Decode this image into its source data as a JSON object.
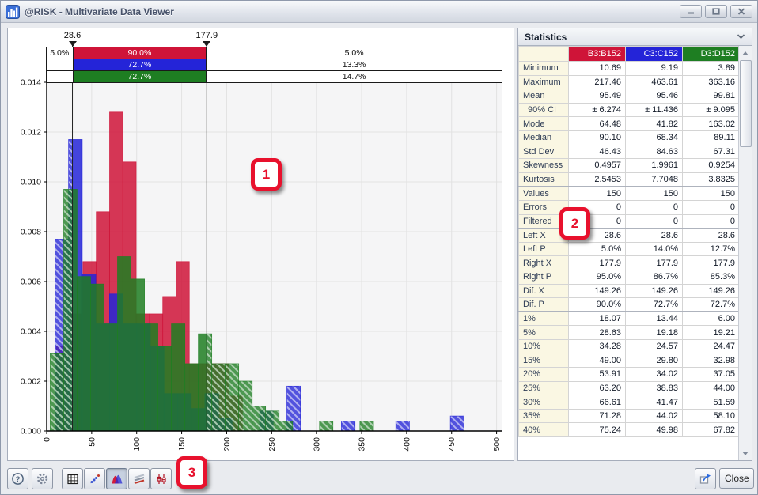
{
  "window": {
    "title": "@RISK - Multivariate Data Viewer",
    "controls": [
      "minimize",
      "maximize",
      "close"
    ]
  },
  "colors": {
    "series_red": "#cf1438",
    "series_blue": "#2424d8",
    "series_green": "#1e7e22",
    "callout_red": "#e8112d"
  },
  "chart_data": {
    "type": "histogram",
    "title": "",
    "xlabel": "",
    "ylabel": "",
    "xlim": [
      0,
      500
    ],
    "ylim": [
      0,
      0.014
    ],
    "x_ticks": [
      0,
      50,
      100,
      150,
      200,
      250,
      300,
      350,
      400,
      450,
      500
    ],
    "x_tick_labels": [
      "0",
      "50",
      "100",
      "150",
      "200",
      "250",
      "300",
      "350",
      "400",
      "450",
      "500"
    ],
    "y_ticks": [
      0,
      0.002,
      0.004,
      0.006,
      0.008,
      0.01,
      0.012,
      0.014
    ],
    "y_tick_labels": [
      "0.000",
      "0.002",
      "0.004",
      "0.006",
      "0.008",
      "0.010",
      "0.012",
      "0.014"
    ],
    "grid": true,
    "legend_position": "none",
    "delimiters": {
      "left_x": 28.6,
      "right_x": 177.9,
      "left_label": "28.6",
      "right_label": "177.9"
    },
    "band_rows": [
      {
        "left": "5.0%",
        "mid": "90.0%",
        "right": "5.0%",
        "color": "#cf1438"
      },
      {
        "left": "",
        "mid": "72.7%",
        "right": "13.3%",
        "color": "#2424d8"
      },
      {
        "left": "",
        "mid": "72.7%",
        "right": "14.7%",
        "color": "#1e7e22"
      }
    ],
    "series": [
      {
        "name": "B3:B152",
        "color": "#cf1438",
        "bins": [
          [
            10.7,
            25.5,
            0.0034
          ],
          [
            25.5,
            40.3,
            0.0047
          ],
          [
            40.3,
            55.1,
            0.0068
          ],
          [
            55.1,
            69.9,
            0.0088
          ],
          [
            69.9,
            84.6,
            0.0128
          ],
          [
            84.6,
            99.4,
            0.0108
          ],
          [
            99.4,
            114.2,
            0.0047
          ],
          [
            114.2,
            129.0,
            0.0047
          ],
          [
            129.0,
            143.8,
            0.0054
          ],
          [
            143.8,
            158.5,
            0.0068
          ],
          [
            158.5,
            173.3,
            0.0027
          ],
          [
            173.3,
            188.1,
            0.0027
          ],
          [
            188.1,
            202.9,
            0.0027
          ],
          [
            202.9,
            217.5,
            0.0014
          ]
        ]
      },
      {
        "name": "C3:C152",
        "color": "#2424d8",
        "bins": [
          [
            9.2,
            24.3,
            0.0077
          ],
          [
            24.3,
            39.5,
            0.0117
          ],
          [
            39.5,
            54.6,
            0.0063
          ],
          [
            54.6,
            69.8,
            0.0043
          ],
          [
            69.8,
            84.9,
            0.0055
          ],
          [
            84.9,
            100.1,
            0.0043
          ],
          [
            100.1,
            115.2,
            0.0043
          ],
          [
            115.2,
            130.4,
            0.0034
          ],
          [
            130.4,
            145.5,
            0.0015
          ],
          [
            145.5,
            160.7,
            0.0015
          ],
          [
            160.7,
            175.8,
            0.0009
          ],
          [
            175.8,
            191.0,
            0.0015
          ],
          [
            191.0,
            206.1,
            0.0005
          ],
          [
            236.6,
            251.7,
            0.0008
          ],
          [
            266.9,
            282.0,
            0.0018
          ],
          [
            327.5,
            342.7,
            0.0004
          ],
          [
            388.0,
            403.1,
            0.0004
          ],
          [
            448.6,
            463.8,
            0.0006
          ]
        ]
      },
      {
        "name": "D3:D152",
        "color": "#1e7e22",
        "bins": [
          [
            3.9,
            18.9,
            0.0031
          ],
          [
            18.9,
            33.8,
            0.0097
          ],
          [
            33.8,
            48.8,
            0.0062
          ],
          [
            48.8,
            63.8,
            0.0059
          ],
          [
            63.8,
            78.7,
            0.0043
          ],
          [
            78.7,
            93.7,
            0.007
          ],
          [
            93.7,
            108.7,
            0.0061
          ],
          [
            108.7,
            123.6,
            0.0043
          ],
          [
            123.6,
            138.6,
            0.0034
          ],
          [
            138.6,
            153.6,
            0.0043
          ],
          [
            153.6,
            168.5,
            0.0027
          ],
          [
            168.5,
            183.5,
            0.0039
          ],
          [
            183.5,
            198.4,
            0.0027
          ],
          [
            198.4,
            213.4,
            0.0027
          ],
          [
            213.4,
            228.4,
            0.002
          ],
          [
            228.4,
            243.3,
            0.001
          ],
          [
            243.3,
            258.3,
            0.0008
          ],
          [
            258.3,
            273.3,
            0.0004
          ],
          [
            303.2,
            318.1,
            0.0004
          ],
          [
            348.1,
            363.2,
            0.0004
          ]
        ]
      }
    ]
  },
  "statistics": {
    "title": "Statistics",
    "columns": [
      {
        "label": "B3:B152",
        "color": "#cf1438"
      },
      {
        "label": "C3:C152",
        "color": "#2424d8"
      },
      {
        "label": "D3:D152",
        "color": "#1e7e22"
      }
    ],
    "rows": [
      {
        "label": "Minimum",
        "values": [
          "10.69",
          "9.19",
          "3.89"
        ]
      },
      {
        "label": "Maximum",
        "values": [
          "217.46",
          "463.61",
          "363.16"
        ]
      },
      {
        "label": "Mean",
        "values": [
          "95.49",
          "95.46",
          "99.81"
        ]
      },
      {
        "label": "90% CI",
        "values": [
          "± 6.274",
          "± 11.436",
          "± 9.095"
        ],
        "indent": true
      },
      {
        "label": "Mode",
        "values": [
          "64.48",
          "41.82",
          "163.02"
        ]
      },
      {
        "label": "Median",
        "values": [
          "90.10",
          "68.34",
          "89.11"
        ]
      },
      {
        "label": "Std Dev",
        "values": [
          "46.43",
          "84.63",
          "67.31"
        ]
      },
      {
        "label": "Skewness",
        "values": [
          "0.4957",
          "1.9961",
          "0.9254"
        ]
      },
      {
        "label": "Kurtosis",
        "values": [
          "2.5453",
          "7.7048",
          "3.8325"
        ],
        "sep": true
      },
      {
        "label": "Values",
        "values": [
          "150",
          "150",
          "150"
        ]
      },
      {
        "label": "Errors",
        "values": [
          "0",
          "0",
          "0"
        ]
      },
      {
        "label": "Filtered",
        "values": [
          "0",
          "0",
          "0"
        ],
        "sep": true
      },
      {
        "label": "Left X",
        "values": [
          "28.6",
          "28.6",
          "28.6"
        ]
      },
      {
        "label": "Left P",
        "values": [
          "5.0%",
          "14.0%",
          "12.7%"
        ]
      },
      {
        "label": "Right X",
        "values": [
          "177.9",
          "177.9",
          "177.9"
        ]
      },
      {
        "label": "Right P",
        "values": [
          "95.0%",
          "86.7%",
          "85.3%"
        ]
      },
      {
        "label": "Dif. X",
        "values": [
          "149.26",
          "149.26",
          "149.26"
        ]
      },
      {
        "label": "Dif. P",
        "values": [
          "90.0%",
          "72.7%",
          "72.7%"
        ],
        "sep": true
      },
      {
        "label": "1%",
        "values": [
          "18.07",
          "13.44",
          "6.00"
        ]
      },
      {
        "label": "5%",
        "values": [
          "28.63",
          "19.18",
          "19.21"
        ]
      },
      {
        "label": "10%",
        "values": [
          "34.28",
          "24.57",
          "24.47"
        ]
      },
      {
        "label": "15%",
        "values": [
          "49.00",
          "29.80",
          "32.98"
        ]
      },
      {
        "label": "20%",
        "values": [
          "53.91",
          "34.02",
          "37.05"
        ]
      },
      {
        "label": "25%",
        "values": [
          "63.20",
          "38.83",
          "44.00"
        ]
      },
      {
        "label": "30%",
        "values": [
          "66.61",
          "41.47",
          "51.59"
        ]
      },
      {
        "label": "35%",
        "values": [
          "71.28",
          "44.02",
          "58.10"
        ]
      },
      {
        "label": "40%",
        "values": [
          "75.24",
          "49.98",
          "67.82"
        ]
      }
    ]
  },
  "toolbar": {
    "icons": [
      "help-icon",
      "gear-icon",
      "table-icon",
      "scatter-icon",
      "histogram-icon",
      "overlay-lines-icon",
      "box-plot-icon"
    ],
    "active": "histogram-icon"
  },
  "callouts": {
    "labels": [
      "1",
      "2",
      "3"
    ]
  },
  "buttons": {
    "close_label": "Close"
  }
}
